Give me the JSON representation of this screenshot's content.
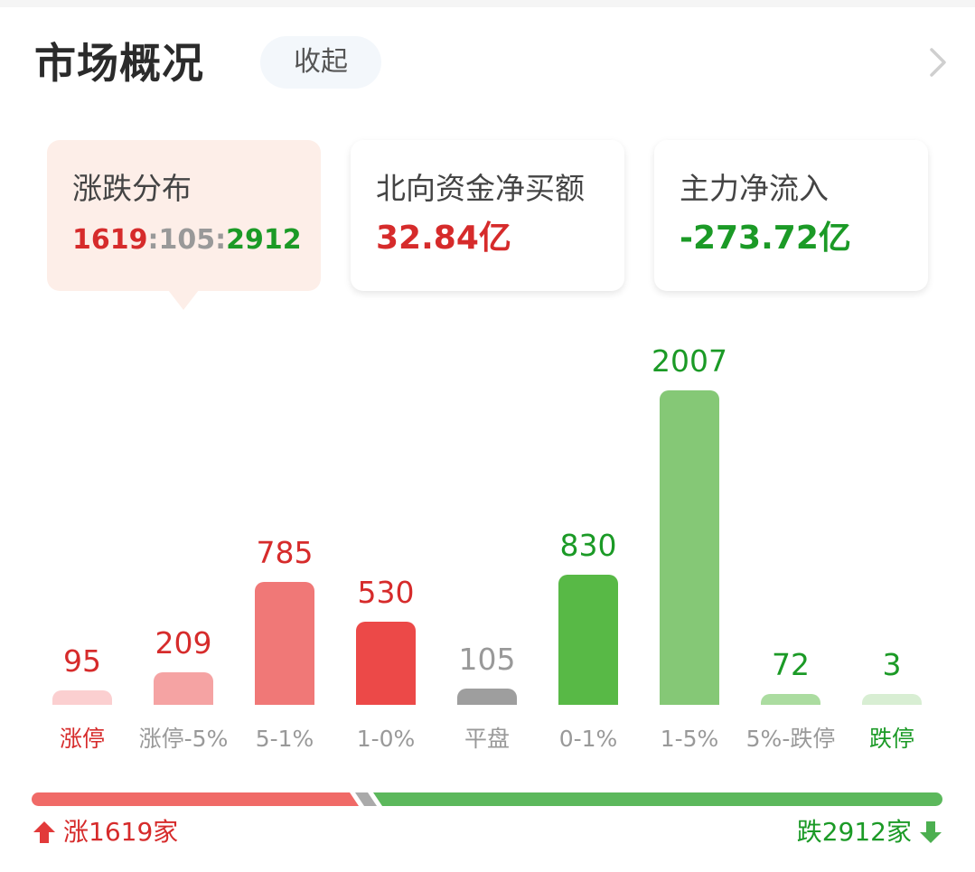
{
  "header": {
    "title": "市场概况",
    "collapse_label": "收起",
    "more_icon": "chevron-right-icon"
  },
  "cards": [
    {
      "title": "涨跌分布",
      "value_up": "1619",
      "sep1": ":",
      "value_flat": "105",
      "sep2": ":",
      "value_down": "2912",
      "active": true
    },
    {
      "title": "北向资金净买额",
      "value": "32.84亿",
      "color": "#d62b2b"
    },
    {
      "title": "主力净流入",
      "value": "-273.72亿",
      "color": "#1b9a26"
    }
  ],
  "colors": {
    "up": "#d62b2b",
    "down": "#1b9a26",
    "flat": "#999999",
    "progress_up": "#f06a67",
    "progress_flat": "#aaaaaa",
    "progress_down": "#5cb85c"
  },
  "chart_data": {
    "type": "bar",
    "title": "涨跌分布",
    "categories": [
      "涨停",
      "涨停-5%",
      "5-1%",
      "1-0%",
      "平盘",
      "0-1%",
      "1-5%",
      "5%-跌停",
      "跌停"
    ],
    "values": [
      95,
      209,
      785,
      530,
      105,
      830,
      2007,
      72,
      3
    ],
    "bar_colors": [
      "#fbcfd0",
      "#f5a3a3",
      "#f07877",
      "#ec4948",
      "#9e9e9e",
      "#58b946",
      "#85c876",
      "#abdca0",
      "#d8eed3"
    ],
    "value_colors": [
      "#d62b2b",
      "#d62b2b",
      "#d62b2b",
      "#d62b2b",
      "#999999",
      "#1b9a26",
      "#1b9a26",
      "#1b9a26",
      "#1b9a26"
    ],
    "label_colors": [
      "#d62b2b",
      "#999999",
      "#999999",
      "#999999",
      "#999999",
      "#999999",
      "#999999",
      "#999999",
      "#1b9a26"
    ],
    "xlabel": "",
    "ylabel": "",
    "grid": false,
    "legend": "none",
    "data_labels": true
  },
  "summary": {
    "up_label": "涨1619家",
    "down_label": "跌2912家",
    "up_count": 1619,
    "flat_count": 105,
    "down_count": 2912,
    "up_icon": "arrow-up-icon",
    "down_icon": "arrow-down-icon"
  }
}
